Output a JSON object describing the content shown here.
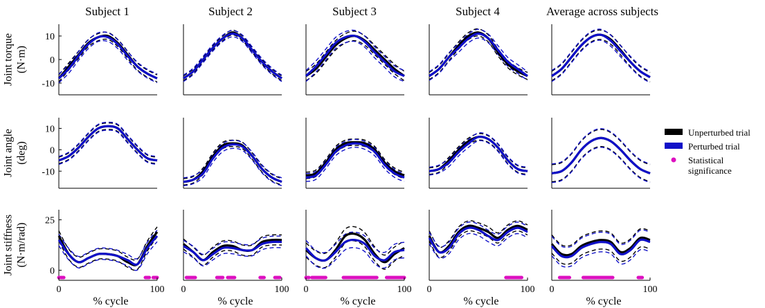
{
  "chart_data": {
    "type": "line",
    "subjects": [
      "Subject 1",
      "Subject 2",
      "Subject 3",
      "Subject 4",
      "Average across subjects"
    ],
    "rows": [
      {
        "ylabel": [
          "Joint torque",
          "(N·m)"
        ],
        "ylim": [
          -15,
          15
        ],
        "yticks": [
          10,
          0,
          -10
        ]
      },
      {
        "ylabel": [
          "Joint angle",
          "(deg)"
        ],
        "ylim": [
          -18,
          15
        ],
        "yticks": [
          10,
          0,
          -10
        ]
      },
      {
        "ylabel": [
          "Joint stiffness",
          "(N·m/rad)"
        ],
        "ylim": [
          -5,
          30
        ],
        "yticks": [
          25,
          0
        ]
      }
    ],
    "xlabel": "% cycle",
    "xticks": [
      0,
      100
    ],
    "x": [
      0,
      10,
      20,
      30,
      40,
      50,
      60,
      70,
      80,
      90,
      100
    ],
    "legend": {
      "placement": "right",
      "items": [
        {
          "label": "Unperturbed trial",
          "color": "#000000"
        },
        {
          "label": "Perturbed trial",
          "color": "#1010c8"
        },
        {
          "label": "Statistical significance",
          "label_lines": [
            "Statistical",
            "significance"
          ],
          "color": "#dd10c0"
        }
      ]
    },
    "colors": {
      "unperturbed": "#000000",
      "perturbed": "#1010c8",
      "significance": "#dd10c0"
    },
    "panels": [
      [
        {
          "unperturbed": [
            -8,
            -3,
            2,
            7,
            9.5,
            10,
            7,
            2,
            -3,
            -6,
            -8
          ],
          "perturbed": [
            -8,
            -4,
            1.5,
            6.5,
            9.5,
            9.5,
            6.5,
            1.5,
            -3,
            -6,
            -8
          ],
          "band": 1.5
        },
        {
          "unperturbed": [
            -5,
            -3,
            1,
            6,
            10,
            11,
            10,
            5,
            0,
            -4,
            -5
          ],
          "perturbed": [
            -5,
            -3,
            1,
            6,
            10,
            11,
            10,
            5,
            0,
            -4,
            -5
          ],
          "band": 1.5
        },
        {
          "unperturbed": [
            17,
            8,
            4,
            6,
            8,
            8,
            7,
            4,
            3,
            12,
            19
          ],
          "perturbed": [
            15,
            8,
            4,
            6,
            8,
            8,
            7,
            5,
            3,
            11,
            17
          ],
          "band": 2.5,
          "significance": [
            [
              0,
              5
            ],
            [
              88,
              92
            ],
            [
              96,
              100
            ]
          ]
        }
      ],
      [
        {
          "unperturbed": [
            -8,
            -5,
            0,
            5,
            9,
            11.5,
            9,
            4,
            -1,
            -5,
            -8
          ],
          "perturbed": [
            -8,
            -5,
            0,
            5,
            9,
            11,
            9,
            4,
            -1,
            -5,
            -8
          ],
          "band": 1
        },
        {
          "unperturbed": [
            -15,
            -14,
            -10,
            -3,
            2,
            3,
            2,
            -3,
            -9,
            -13,
            -15
          ],
          "perturbed": [
            -15,
            -14,
            -11,
            -4,
            1,
            2.5,
            1.5,
            -3,
            -9,
            -13,
            -15
          ],
          "band": 1.5
        },
        {
          "unperturbed": [
            13,
            9,
            5,
            9,
            12,
            12,
            10,
            10,
            14,
            15,
            15
          ],
          "perturbed": [
            12,
            9,
            5,
            8,
            11,
            11,
            10,
            10,
            13,
            14,
            14
          ],
          "band": 2.5,
          "significance": [
            [
              3,
              12
            ],
            [
              34,
              40
            ],
            [
              45,
              52
            ],
            [
              78,
              82
            ],
            [
              93,
              98
            ]
          ]
        }
      ],
      [
        {
          "unperturbed": [
            -7,
            -4,
            1,
            6,
            9,
            10,
            8,
            4,
            0,
            -4,
            -7
          ],
          "perturbed": [
            -7,
            -3,
            2,
            7,
            9.5,
            10,
            7.5,
            3,
            -1,
            -5,
            -7
          ],
          "band": 2
        },
        {
          "unperturbed": [
            -12,
            -11,
            -6,
            0,
            3,
            3.5,
            3,
            0,
            -6,
            -10,
            -12
          ],
          "perturbed": [
            -13,
            -12,
            -7,
            -1,
            2,
            3,
            2,
            -1,
            -7,
            -11,
            -13
          ],
          "band": 1.5
        },
        {
          "unperturbed": [
            10,
            6,
            5,
            10,
            17,
            18,
            15,
            8,
            4,
            8,
            11
          ],
          "perturbed": [
            11,
            6,
            5,
            9,
            14,
            15,
            13,
            7,
            5,
            9,
            10
          ],
          "band": 3.5,
          "significance": [
            [
              0,
              3
            ],
            [
              6,
              20
            ],
            [
              38,
              72
            ],
            [
              82,
              100
            ]
          ]
        }
      ],
      [
        {
          "unperturbed": [
            -7,
            -4,
            1,
            6,
            10,
            11.5,
            9,
            3,
            -2,
            -5,
            -7
          ],
          "perturbed": [
            -7,
            -4,
            1,
            5,
            9,
            11,
            9,
            4,
            -1,
            -4,
            -7
          ],
          "band": 1.5
        },
        {
          "unperturbed": [
            -10,
            -9,
            -5,
            0,
            4,
            6,
            5,
            1,
            -5,
            -9,
            -10
          ],
          "perturbed": [
            -10,
            -9,
            -6,
            -1,
            3,
            6,
            5,
            1,
            -5,
            -9,
            -10
          ],
          "band": 1.5
        },
        {
          "unperturbed": [
            17,
            9,
            12,
            19,
            22,
            21,
            19,
            16,
            20,
            22,
            20
          ],
          "perturbed": [
            16,
            9,
            11,
            18,
            21,
            20,
            17,
            15,
            19,
            21,
            19
          ],
          "band": 2.5,
          "significance": [
            [
              78,
              94
            ]
          ]
        }
      ],
      [
        {
          "unperturbed": [
            -7,
            -4,
            1,
            6,
            9.5,
            10.5,
            8.5,
            4,
            -1,
            -5,
            -7.5
          ],
          "perturbed": [
            -7,
            -4,
            1,
            6,
            9.5,
            10.5,
            8,
            3.5,
            -1,
            -5,
            -7.5
          ],
          "band": 2
        },
        {
          "unperturbed": [
            -11,
            -10,
            -6,
            0,
            4,
            5.5,
            4,
            0,
            -5,
            -9,
            -11
          ],
          "perturbed": [
            -11,
            -10,
            -6,
            0,
            4,
            5.5,
            4,
            0,
            -5,
            -9,
            -11
          ],
          "band": 4
        },
        {
          "unperturbed": [
            13,
            8,
            8,
            12,
            14,
            15,
            14,
            9,
            11,
            16,
            15
          ],
          "perturbed": [
            12,
            7,
            7,
            11,
            13,
            14,
            13,
            8,
            10,
            15,
            14
          ],
          "band": 4.5,
          "significance": [
            [
              8,
              18
            ],
            [
              32,
              62
            ],
            [
              88,
              92
            ]
          ]
        }
      ]
    ]
  }
}
